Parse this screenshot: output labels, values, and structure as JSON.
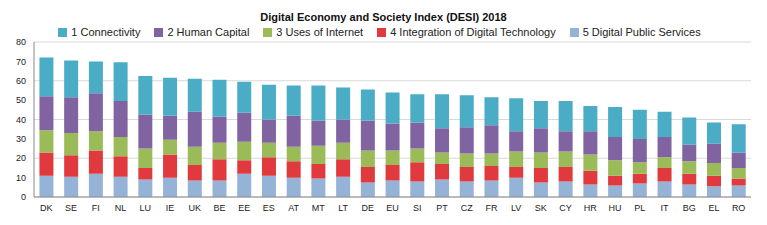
{
  "chart_data": {
    "type": "bar",
    "title": "Digital Economy and Society Index (DESI) 2018",
    "categories": [
      "DK",
      "SE",
      "FI",
      "NL",
      "LU",
      "IE",
      "UK",
      "BE",
      "EE",
      "ES",
      "AT",
      "MT",
      "LT",
      "DE",
      "EU",
      "SI",
      "PT",
      "CZ",
      "FR",
      "LV",
      "SK",
      "CY",
      "HR",
      "HU",
      "PL",
      "IT",
      "BG",
      "EL",
      "RO"
    ],
    "series": [
      {
        "name": "1 Connectivity",
        "color": "#4bacc6",
        "values": [
          20,
          19,
          16.5,
          20,
          20,
          19.5,
          17,
          19,
          16,
          18,
          15.5,
          18,
          16.5,
          16,
          16,
          14.5,
          17.5,
          16.5,
          14.5,
          17,
          14,
          15.5,
          13,
          15.5,
          15,
          13,
          14,
          11,
          14.5
        ]
      },
      {
        "name": "2 Human Capital",
        "color": "#8064a2",
        "values": [
          17.5,
          18.5,
          19.5,
          18.5,
          17.5,
          12.5,
          18,
          13.5,
          15,
          12,
          16,
          13,
          12,
          15.5,
          14,
          13.5,
          12.5,
          13.5,
          14.5,
          10.5,
          12.5,
          10.5,
          12,
          12,
          12,
          10.5,
          8.5,
          10,
          8
        ]
      },
      {
        "name": "3 Uses of Internet",
        "color": "#9bbb59",
        "values": [
          11.5,
          11.5,
          10,
          10,
          10,
          7.5,
          9.5,
          8.5,
          9.5,
          7.5,
          7.5,
          9.5,
          8.5,
          8.5,
          7.5,
          7,
          6,
          7,
          6.5,
          8,
          8,
          8,
          8.5,
          8,
          6,
          5.5,
          6.5,
          6.5,
          5.5
        ]
      },
      {
        "name": "4 Integration of Digital Technology",
        "color": "#e0393e",
        "values": [
          12,
          11,
          12,
          10.5,
          6,
          12,
          8,
          11,
          7,
          9.5,
          8.5,
          7.5,
          9,
          8,
          8,
          10,
          8,
          7.5,
          7.5,
          5.5,
          7.5,
          7.5,
          7,
          5,
          5,
          7,
          5.5,
          5.5,
          3.5
        ]
      },
      {
        "name": "5 Digital Public Services",
        "color": "#95b3d7",
        "values": [
          11,
          10.5,
          12,
          10.5,
          9,
          10,
          8.5,
          8.5,
          12,
          11,
          10,
          9.5,
          10.5,
          7.5,
          8.5,
          8,
          9,
          8,
          8.5,
          10,
          7.5,
          8,
          6.5,
          6,
          7,
          8,
          6.5,
          5.5,
          6
        ]
      }
    ],
    "ylim": [
      0,
      80
    ],
    "yticks": [
      0,
      10,
      20,
      30,
      40,
      50,
      60,
      70,
      80
    ],
    "stacked": true,
    "grid": true,
    "legend": "top"
  }
}
